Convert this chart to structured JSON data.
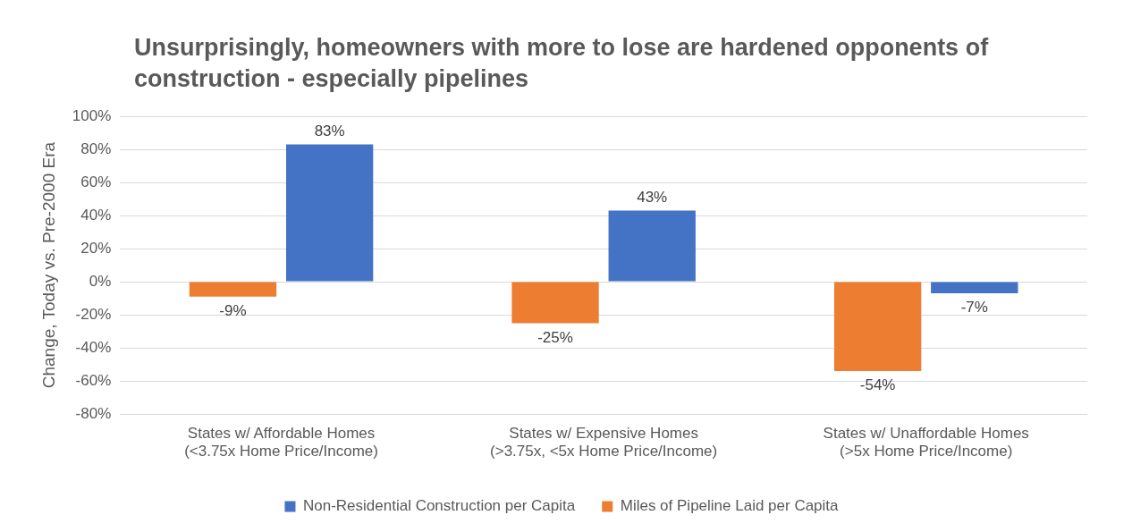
{
  "chart_data": {
    "type": "bar",
    "title": "Unsurprisingly, homeowners with more to lose are hardened opponents of construction - especially pipelines",
    "ylabel": "Change, Today vs. Pre-2000 Era",
    "categories": [
      "States w/ Affordable Homes\n(<3.75x Home Price/Income)",
      "States w/ Expensive Homes\n(>3.75x, <5x Home Price/Income)",
      "States w/ Unaffordable Homes\n(>5x Home Price/Income)"
    ],
    "series": [
      {
        "name": "Miles of Pipeline Laid per Capita",
        "color": "#ed7d31",
        "values": [
          -9,
          -25,
          -54
        ],
        "value_labels": [
          "-9%",
          "-25%",
          "-54%"
        ]
      },
      {
        "name": "Non-Residential Construction per Capita",
        "color": "#4472c4",
        "values": [
          83,
          43,
          -7
        ],
        "value_labels": [
          "83%",
          "43%",
          "-7%"
        ]
      }
    ],
    "ylim": [
      -80,
      100
    ],
    "yticks": [
      {
        "value": -80,
        "label": "-80%"
      },
      {
        "value": -60,
        "label": "-60%"
      },
      {
        "value": -40,
        "label": "-40%"
      },
      {
        "value": -20,
        "label": "-20%"
      },
      {
        "value": 0,
        "label": "0%"
      },
      {
        "value": 20,
        "label": "20%"
      },
      {
        "value": 40,
        "label": "40%"
      },
      {
        "value": 60,
        "label": "60%"
      },
      {
        "value": 80,
        "label": "80%"
      },
      {
        "value": 100,
        "label": "100%"
      }
    ],
    "grid": "y",
    "legend": "bottom"
  }
}
